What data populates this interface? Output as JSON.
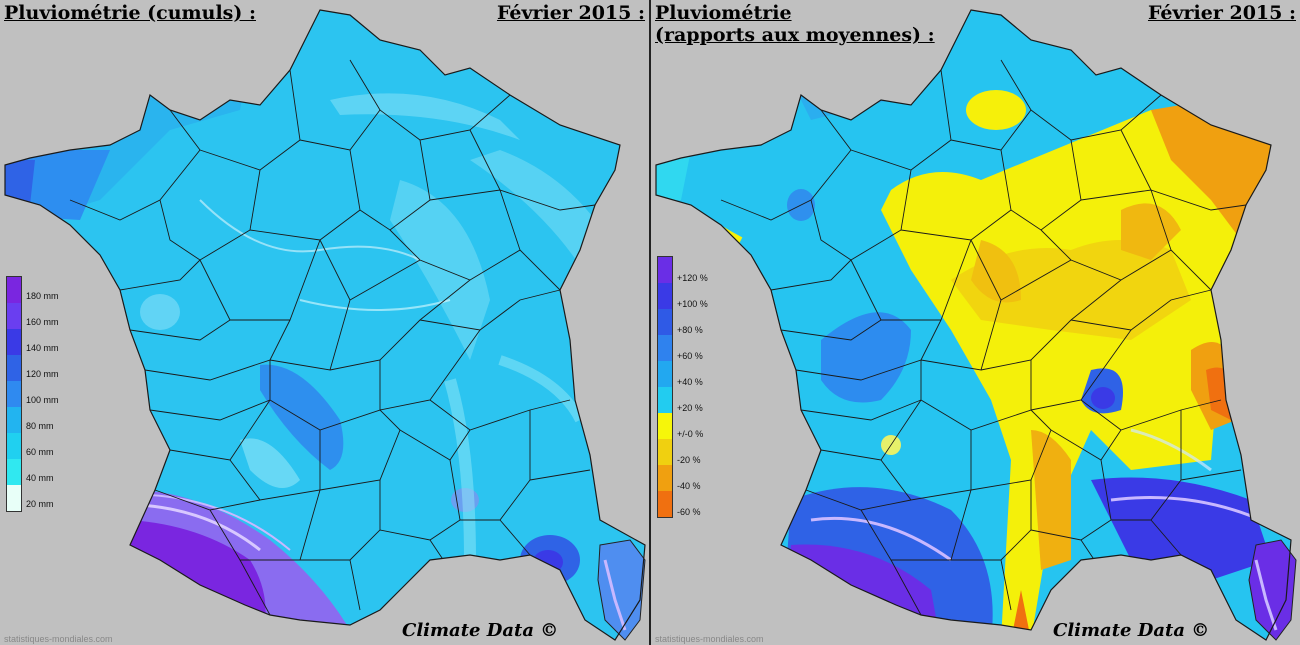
{
  "left_panel": {
    "title": "Pluviométrie (cumuls) :",
    "date": "Février 2015 :",
    "legend": {
      "labels": [
        "180 mm",
        "160 mm",
        "140 mm",
        "120 mm",
        "100 mm",
        "80 mm",
        "60 mm",
        "40 mm",
        "20 mm"
      ],
      "colors": [
        "#7a26e0",
        "#6a3ef0",
        "#3a3ae6",
        "#2f63e6",
        "#2f8af0",
        "#22b4f0",
        "#20d0f0",
        "#30e8f0",
        "#e8fff8"
      ]
    },
    "watermark": "statistiques-mondiales.com",
    "credit": "Climate Data ©"
  },
  "right_panel": {
    "title_line1": "Pluviométrie",
    "title_line2": "(rapports aux moyennes) :",
    "date": "Février 2015 :",
    "legend": {
      "labels": [
        "+120 %",
        "+100 %",
        "+80 %",
        "+60 %",
        "+40 %",
        "+20 %",
        "+/-0 %",
        "-20 %",
        "-40 %",
        "-60 %"
      ],
      "colors": [
        "#6a2ee6",
        "#3a3ae6",
        "#2f5ae6",
        "#2f82ee",
        "#22a8f0",
        "#22ccf0",
        "#f6f60a",
        "#f0d010",
        "#f0a010",
        "#f07010"
      ]
    },
    "watermark": "statistiques-mondiales.com",
    "credit": "Climate Data ©"
  }
}
